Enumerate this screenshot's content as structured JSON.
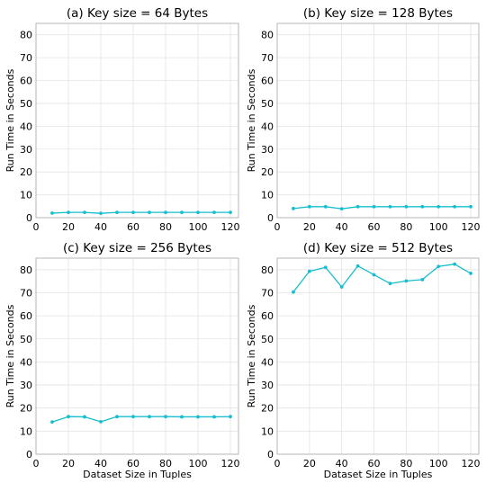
{
  "chart_data": [
    {
      "type": "line",
      "title": "(a) Key size = 64 Bytes",
      "xlabel": "",
      "ylabel": "Run Time in Seconds",
      "x": [
        10,
        20,
        30,
        40,
        50,
        60,
        70,
        80,
        90,
        100,
        110,
        120
      ],
      "series": [
        {
          "values": [
            2.0,
            2.3,
            2.3,
            1.9,
            2.3,
            2.3,
            2.3,
            2.3,
            2.3,
            2.3,
            2.3,
            2.3
          ]
        }
      ],
      "xlim": [
        0,
        125
      ],
      "ylim": [
        0,
        85
      ],
      "xticks": [
        0,
        20,
        40,
        60,
        80,
        100,
        120
      ],
      "yticks": [
        0,
        10,
        20,
        30,
        40,
        50,
        60,
        70,
        80
      ],
      "grid": true,
      "color": "#17becf"
    },
    {
      "type": "line",
      "title": "(b) Key size = 128 Bytes",
      "xlabel": "",
      "ylabel": "Run Time in Seconds",
      "x": [
        10,
        20,
        30,
        40,
        50,
        60,
        70,
        80,
        90,
        100,
        110,
        120
      ],
      "series": [
        {
          "values": [
            4.0,
            4.8,
            4.8,
            3.9,
            4.8,
            4.8,
            4.8,
            4.8,
            4.8,
            4.8,
            4.8,
            4.8
          ]
        }
      ],
      "xlim": [
        0,
        125
      ],
      "ylim": [
        0,
        85
      ],
      "xticks": [
        0,
        20,
        40,
        60,
        80,
        100,
        120
      ],
      "yticks": [
        0,
        10,
        20,
        30,
        40,
        50,
        60,
        70,
        80
      ],
      "grid": true,
      "color": "#17becf"
    },
    {
      "type": "line",
      "title": "(c) Key size = 256 Bytes",
      "xlabel": "Dataset Size in Tuples",
      "ylabel": "Run Time in Seconds",
      "x": [
        10,
        20,
        30,
        40,
        50,
        60,
        70,
        80,
        90,
        100,
        110,
        120
      ],
      "series": [
        {
          "values": [
            14.0,
            16.3,
            16.2,
            14.1,
            16.3,
            16.3,
            16.3,
            16.3,
            16.2,
            16.2,
            16.2,
            16.3
          ]
        }
      ],
      "xlim": [
        0,
        125
      ],
      "ylim": [
        0,
        85
      ],
      "xticks": [
        0,
        20,
        40,
        60,
        80,
        100,
        120
      ],
      "yticks": [
        0,
        10,
        20,
        30,
        40,
        50,
        60,
        70,
        80
      ],
      "grid": true,
      "color": "#17becf"
    },
    {
      "type": "line",
      "title": "(d) Key size = 512 Bytes",
      "xlabel": "Dataset Size in Tuples",
      "ylabel": "Run Time in Seconds",
      "x": [
        10,
        20,
        30,
        40,
        50,
        60,
        70,
        80,
        90,
        100,
        110,
        120
      ],
      "series": [
        {
          "values": [
            70.3,
            79.3,
            81.0,
            72.5,
            81.6,
            77.8,
            74.0,
            75.1,
            75.7,
            81.4,
            82.4,
            78.4
          ]
        }
      ],
      "xlim": [
        0,
        125
      ],
      "ylim": [
        0,
        85
      ],
      "xticks": [
        0,
        20,
        40,
        60,
        80,
        100,
        120
      ],
      "yticks": [
        0,
        10,
        20,
        30,
        40,
        50,
        60,
        70,
        80
      ],
      "grid": true,
      "color": "#17becf"
    }
  ]
}
